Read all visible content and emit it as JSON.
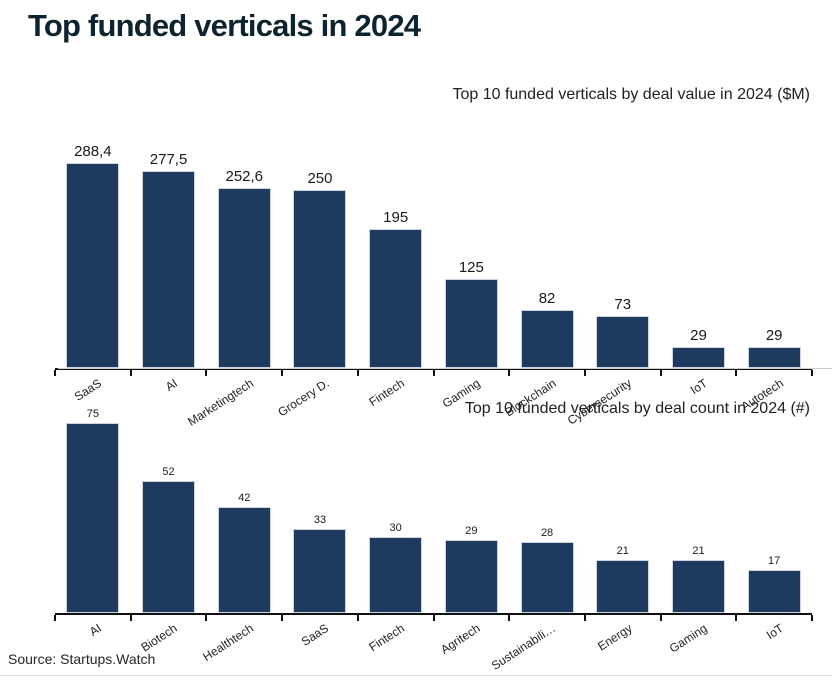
{
  "page": {
    "title": "Top funded verticals in 2024",
    "source": "Source: Startups.Watch"
  },
  "colors": {
    "bar": "#1f3a5f",
    "bar_border": "#ccd5e2",
    "title_text": "#0e2330",
    "axis": "#111111"
  },
  "chart_data": [
    {
      "type": "bar",
      "title": "Top 10 funded verticals by deal value in 2024 ($M)",
      "categories": [
        "SaaS",
        "AI",
        "Marketingtech",
        "Grocery D.",
        "Fintech",
        "Gaming",
        "Blockchain",
        "Cybersecurity",
        "IoT",
        "Autotech"
      ],
      "values": [
        288.4,
        277.5,
        252.6,
        250,
        195,
        125,
        82,
        73,
        29,
        29
      ],
      "value_labels": [
        "288,4",
        "277,5",
        "252,6",
        "250",
        "195",
        "125",
        "82",
        "73",
        "29",
        "29"
      ],
      "xlabel": "",
      "ylabel": "",
      "ylim": [
        0,
        288.4
      ],
      "grid": false,
      "legend": "none",
      "bar_color": "#1f3a5f"
    },
    {
      "type": "bar",
      "title": "Top 10 funded verticals by deal count in 2024 (#)",
      "categories": [
        "AI",
        "Biotech",
        "Healthtech",
        "SaaS",
        "Fintech",
        "Agritech",
        "Sustainabili…",
        "Energy",
        "Gaming",
        "IoT"
      ],
      "values": [
        75,
        52,
        42,
        33,
        30,
        29,
        28,
        21,
        21,
        17
      ],
      "value_labels": [
        "75",
        "52",
        "42",
        "33",
        "30",
        "29",
        "28",
        "21",
        "21",
        "17"
      ],
      "xlabel": "",
      "ylabel": "",
      "ylim": [
        0,
        75
      ],
      "grid": false,
      "legend": "none",
      "bar_color": "#1f3a5f"
    }
  ]
}
